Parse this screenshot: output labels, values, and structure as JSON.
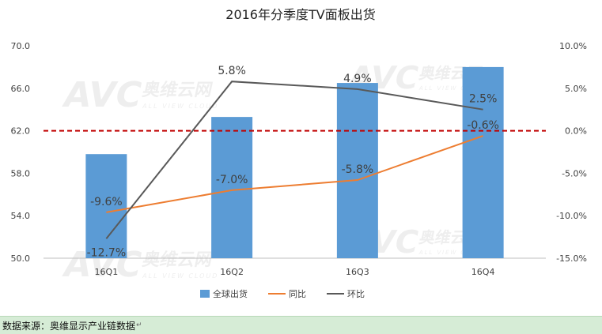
{
  "chart_data": {
    "type": "bar",
    "title": "2016年分季度TV面板出货",
    "categories": [
      "16Q1",
      "16Q2",
      "16Q3",
      "16Q4"
    ],
    "series": [
      {
        "name": "全球出货",
        "type": "bar",
        "axis": "left",
        "values": [
          59.8,
          63.3,
          66.5,
          68.0
        ],
        "color": "#5b9bd5"
      },
      {
        "name": "同比",
        "type": "line",
        "axis": "right",
        "values": [
          -9.6,
          -7.0,
          -5.8,
          -0.6
        ],
        "labels": [
          "-9.6%",
          "-7.0%",
          "-5.8%",
          "-0.6%"
        ],
        "color": "#ed7d31"
      },
      {
        "name": "环比",
        "type": "line",
        "axis": "right",
        "values": [
          -12.7,
          5.8,
          4.9,
          2.5
        ],
        "labels": [
          "-12.7%",
          "5.8%",
          "4.9%",
          "2.5%"
        ],
        "color": "#595959"
      }
    ],
    "left_axis": {
      "ylim": [
        50.0,
        70.0
      ],
      "ticks": [
        "50.0",
        "54.0",
        "58.0",
        "62.0",
        "66.0",
        "70.0"
      ]
    },
    "right_axis": {
      "ylim": [
        -15.0,
        10.0
      ],
      "ticks": [
        "-15.0%",
        "-10.0%",
        "-5.0%",
        "0.0%",
        "5.0%",
        "10.0%"
      ]
    },
    "reference_line": {
      "axis": "right",
      "value": 0.0,
      "style": "dashed",
      "color": "#c00000"
    },
    "legend_position": "bottom",
    "grid": false
  },
  "watermark": {
    "brand": "AVC",
    "cn": "奥维云网",
    "en": "ALL VIEW CLOUD"
  },
  "footer": {
    "source": "数据来源：奥维显示产业链数据"
  }
}
